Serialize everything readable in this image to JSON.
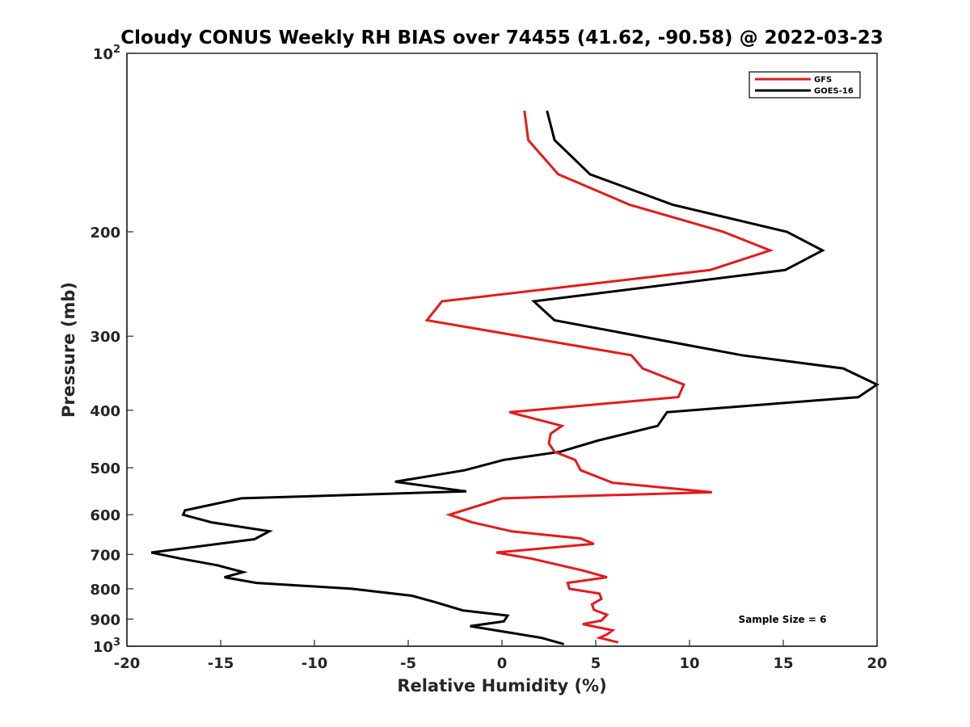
{
  "chart_data": {
    "type": "line",
    "title": "Cloudy CONUS Weekly RH BIAS over 74455 (41.62, -90.58) @ 2022-03-23",
    "xlabel": "Relative Humidity (%)",
    "ylabel": "Pressure (mb)",
    "xlim": [
      -20,
      20
    ],
    "ylim": [
      100,
      1000
    ],
    "yscale": "log",
    "y_reversed": true,
    "xticks": [
      -20,
      -15,
      -10,
      -5,
      0,
      5,
      10,
      15,
      20
    ],
    "yticks": [
      {
        "value": 100,
        "label": "10",
        "sup": "2"
      },
      {
        "value": 200,
        "label": "200",
        "sup": ""
      },
      {
        "value": 300,
        "label": "300",
        "sup": ""
      },
      {
        "value": 400,
        "label": "400",
        "sup": ""
      },
      {
        "value": 500,
        "label": "500",
        "sup": ""
      },
      {
        "value": 600,
        "label": "600",
        "sup": ""
      },
      {
        "value": 700,
        "label": "700",
        "sup": ""
      },
      {
        "value": 800,
        "label": "800",
        "sup": ""
      },
      {
        "value": 900,
        "label": "900",
        "sup": ""
      },
      {
        "value": 1000,
        "label": "10",
        "sup": "3"
      }
    ],
    "grid": false,
    "legend_position": "top-right",
    "annotation": "Sample Size = 6",
    "series": [
      {
        "name": "GFS",
        "color": "#e41a1c",
        "points": [
          [
            1.2,
            125
          ],
          [
            1.4,
            140
          ],
          [
            3.0,
            160
          ],
          [
            6.8,
            180
          ],
          [
            11.8,
            200
          ],
          [
            14.3,
            215
          ],
          [
            11.1,
            232
          ],
          [
            -3.2,
            262
          ],
          [
            -4.0,
            282
          ],
          [
            6.9,
            323
          ],
          [
            7.5,
            340
          ],
          [
            9.7,
            362
          ],
          [
            9.4,
            380
          ],
          [
            0.4,
            403
          ],
          [
            3.2,
            425
          ],
          [
            2.6,
            438
          ],
          [
            2.5,
            455
          ],
          [
            2.8,
            470
          ],
          [
            3.9,
            485
          ],
          [
            4.2,
            505
          ],
          [
            5.9,
            530
          ],
          [
            11.2,
            550
          ],
          [
            0.0,
            563
          ],
          [
            -2.8,
            600
          ],
          [
            -1.6,
            618
          ],
          [
            0.5,
            640
          ],
          [
            4.2,
            658
          ],
          [
            4.9,
            672
          ],
          [
            -0.3,
            695
          ],
          [
            1.6,
            712
          ],
          [
            4.3,
            745
          ],
          [
            5.6,
            765
          ],
          [
            3.5,
            782
          ],
          [
            3.6,
            800
          ],
          [
            5.2,
            815
          ],
          [
            5.3,
            832
          ],
          [
            4.8,
            850
          ],
          [
            4.9,
            868
          ],
          [
            5.6,
            885
          ],
          [
            5.3,
            905
          ],
          [
            4.3,
            918
          ],
          [
            5.9,
            940
          ],
          [
            5.6,
            955
          ],
          [
            5.2,
            968
          ],
          [
            6.2,
            985
          ]
        ]
      },
      {
        "name": "GOES-16",
        "color": "#000000",
        "points": [
          [
            2.4,
            125
          ],
          [
            2.8,
            140
          ],
          [
            4.7,
            160
          ],
          [
            9.1,
            180
          ],
          [
            15.2,
            200
          ],
          [
            17.1,
            215
          ],
          [
            15.1,
            232
          ],
          [
            1.7,
            262
          ],
          [
            2.8,
            282
          ],
          [
            12.8,
            323
          ],
          [
            18.2,
            340
          ],
          [
            20.0,
            362
          ],
          [
            19.0,
            380
          ],
          [
            8.8,
            403
          ],
          [
            8.3,
            425
          ],
          [
            5.1,
            450
          ],
          [
            3.1,
            470
          ],
          [
            0.1,
            485
          ],
          [
            -2.0,
            505
          ],
          [
            -5.7,
            528
          ],
          [
            -1.9,
            548
          ],
          [
            -13.9,
            563
          ],
          [
            -16.9,
            590
          ],
          [
            -17.0,
            600
          ],
          [
            -15.5,
            618
          ],
          [
            -12.4,
            640
          ],
          [
            -13.2,
            660
          ],
          [
            -18.7,
            695
          ],
          [
            -17.1,
            712
          ],
          [
            -15.2,
            730
          ],
          [
            -13.8,
            750
          ],
          [
            -14.8,
            765
          ],
          [
            -13.1,
            782
          ],
          [
            -8.0,
            800
          ],
          [
            -4.8,
            822
          ],
          [
            -3.6,
            842
          ],
          [
            -2.1,
            870
          ],
          [
            0.3,
            888
          ],
          [
            0.1,
            908
          ],
          [
            -1.7,
            925
          ],
          [
            0.1,
            945
          ],
          [
            2.1,
            968
          ],
          [
            3.3,
            992
          ]
        ]
      }
    ]
  }
}
